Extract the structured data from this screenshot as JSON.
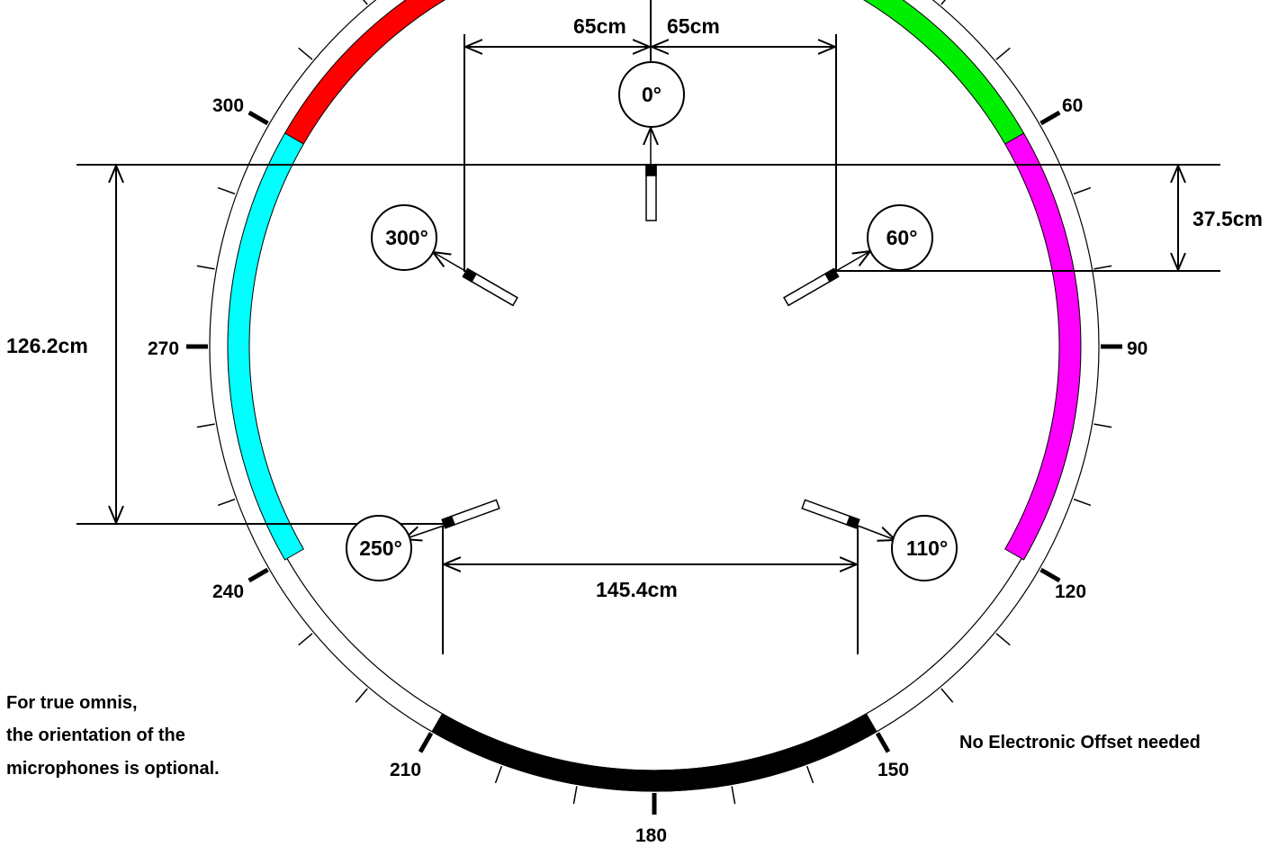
{
  "speakers": [
    {
      "id": "center",
      "angle_label": "0°"
    },
    {
      "id": "front-right",
      "angle_label": "60°"
    },
    {
      "id": "front-left",
      "angle_label": "300°"
    },
    {
      "id": "rear-right",
      "angle_label": "110°"
    },
    {
      "id": "rear-left",
      "angle_label": "250°"
    }
  ],
  "tick_labels": [
    "60",
    "90",
    "120",
    "150",
    "180",
    "210",
    "240",
    "270",
    "300"
  ],
  "dimensions": {
    "left_spacing": "65cm",
    "right_spacing": "65cm",
    "front_depth": "37.5cm",
    "side_depth": "126.2cm",
    "rear_width": "145.4cm"
  },
  "notes": {
    "omni_line1": "For true omnis,",
    "omni_line2": "the orientation of the",
    "omni_line3": "microphones is optional.",
    "offset": "No Electronic Offset needed"
  },
  "colors": {
    "front_left_sector": "#ff0000",
    "front_right_sector": "#00ee00",
    "right_side_sector": "#ff00ff",
    "left_side_sector": "#00ffff",
    "rear_sector": "#000000",
    "lines": "#000000"
  }
}
